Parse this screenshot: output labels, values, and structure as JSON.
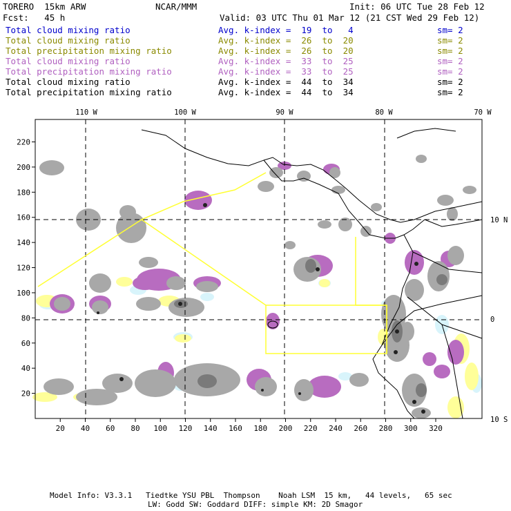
{
  "header": {
    "model": "TORERO  15km ARW",
    "org": "NCAR/MMM",
    "init": "Init: 06 UTC Tue 28 Feb 12",
    "fcst": "Fcst:   45 h",
    "valid": "Valid: 03 UTC Thu 01 Mar 12 (21 CST Wed 29 Feb 12)"
  },
  "legend": [
    {
      "field": "Total cloud mixing ratio",
      "kindex": "Avg. k-index =  19  to   4",
      "sm": "sm= 2",
      "color": "#0000cc"
    },
    {
      "field": "Total cloud mixing ratio",
      "kindex": "Avg. k-index =  26  to  20",
      "sm": "sm= 2",
      "color": "#8a8a00"
    },
    {
      "field": "Total precipitation mixing ratio",
      "kindex": "Avg. k-index =  26  to  20",
      "sm": "sm= 2",
      "color": "#8a8a00"
    },
    {
      "field": "Total cloud mixing ratio",
      "kindex": "Avg. k-index =  33  to  25",
      "sm": "sm= 2",
      "color": "#b060c0"
    },
    {
      "field": "Total precipitation mixing ratio",
      "kindex": "Avg. k-index =  33  to  25",
      "sm": "sm= 2",
      "color": "#b060c0"
    },
    {
      "field": "Total cloud mixing ratio",
      "kindex": "Avg. k-index =  44  to  34",
      "sm": "sm= 2",
      "color": "#000000"
    },
    {
      "field": "Total precipitation mixing ratio",
      "kindex": "Avg. k-index =  44  to  34",
      "sm": "sm= 2",
      "color": "#000000"
    }
  ],
  "map": {
    "lon_labels": [
      "110 W",
      "100 W",
      "90 W",
      "80 W",
      "70 W"
    ],
    "lat_labels": [
      "10 N",
      "0",
      "10 S"
    ],
    "x_ticks": [
      "20",
      "40",
      "60",
      "80",
      "100",
      "120",
      "140",
      "160",
      "180",
      "200",
      "220",
      "240",
      "260",
      "280",
      "300",
      "320"
    ],
    "y_ticks": [
      "20",
      "40",
      "60",
      "80",
      "100",
      "120",
      "140",
      "160",
      "180",
      "200",
      "220"
    ],
    "colors": {
      "frame": "#000000",
      "grid": "#000000",
      "coast": "#000000",
      "flight_track": "#ffff33",
      "gray": "#a8a8a8",
      "gray_dark": "#7a7a7a",
      "core": "#222222",
      "purple": "#b86cc0",
      "light_blue": "#d8f4fb",
      "yellow": "#ffff99"
    }
  },
  "footer": {
    "line1": "Model Info: V3.3.1   Tiedtke YSU PBL  Thompson    Noah LSM  15 km,   44 levels,   65 sec",
    "line2": "LW: Godd SW: Goddard DIFF: simple KM: 2D Smagor"
  }
}
